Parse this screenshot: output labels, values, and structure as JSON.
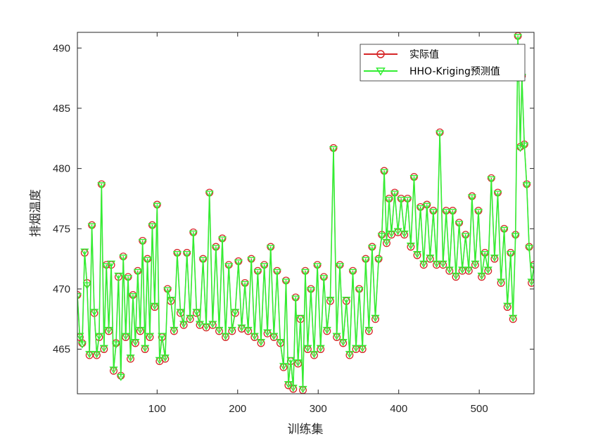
{
  "chart_data": {
    "type": "line",
    "title": "",
    "xlabel": "训练集",
    "ylabel": "排烟温度",
    "xlim": [
      1,
      568
    ],
    "ylim": [
      461.3,
      491.3
    ],
    "xticks": [
      100,
      200,
      300,
      400,
      500
    ],
    "yticks": [
      465,
      470,
      475,
      480,
      485,
      490
    ],
    "grid": false,
    "legend_position": "top-right",
    "series": [
      {
        "name": "实际值",
        "color": "#d62728",
        "marker": "circle",
        "anchors": [
          [
            1,
            469.5
          ],
          [
            4,
            466
          ],
          [
            7,
            465.5
          ],
          [
            10,
            473
          ],
          [
            13,
            470.5
          ],
          [
            16,
            464.5
          ],
          [
            19,
            475.3
          ],
          [
            22,
            468
          ],
          [
            25,
            464.5
          ],
          [
            28,
            466
          ],
          [
            31,
            478.7
          ],
          [
            34,
            465
          ],
          [
            37,
            472
          ],
          [
            40,
            466.5
          ],
          [
            43,
            472
          ],
          [
            46,
            463.2
          ],
          [
            49,
            465.5
          ],
          [
            52,
            471
          ],
          [
            55,
            462.8
          ],
          [
            58,
            472.7
          ],
          [
            61,
            466
          ],
          [
            64,
            471
          ],
          [
            67,
            464.2
          ],
          [
            70,
            469.5
          ],
          [
            73,
            465.5
          ],
          [
            76,
            471.5
          ],
          [
            79,
            466.5
          ],
          [
            82,
            474
          ],
          [
            85,
            465
          ],
          [
            88,
            472.5
          ],
          [
            91,
            466
          ],
          [
            94,
            475.3
          ],
          [
            97,
            468.5
          ],
          [
            100,
            477
          ],
          [
            103,
            464
          ],
          [
            106,
            466
          ],
          [
            110,
            464.2
          ],
          [
            113,
            470
          ],
          [
            117,
            469
          ],
          [
            121,
            466.5
          ],
          [
            125,
            473
          ],
          [
            129,
            468
          ],
          [
            133,
            467
          ],
          [
            137,
            473
          ],
          [
            141,
            467.5
          ],
          [
            145,
            474.7
          ],
          [
            149,
            468
          ],
          [
            153,
            467
          ],
          [
            157,
            472.5
          ],
          [
            161,
            466.8
          ],
          [
            165,
            478
          ],
          [
            169,
            467
          ],
          [
            173,
            473.5
          ],
          [
            177,
            466.5
          ],
          [
            181,
            474.2
          ],
          [
            185,
            466
          ],
          [
            189,
            472
          ],
          [
            193,
            466.5
          ],
          [
            197,
            468
          ],
          [
            201,
            472.3
          ],
          [
            205,
            466.7
          ],
          [
            209,
            470.5
          ],
          [
            213,
            466.5
          ],
          [
            217,
            472.5
          ],
          [
            221,
            466
          ],
          [
            225,
            471.5
          ],
          [
            229,
            465.5
          ],
          [
            233,
            472
          ],
          [
            237,
            466.3
          ],
          [
            241,
            473.5
          ],
          [
            245,
            466
          ],
          [
            249,
            471.5
          ],
          [
            253,
            465.5
          ],
          [
            257,
            463.5
          ],
          [
            260,
            470.7
          ],
          [
            263,
            462
          ],
          [
            266,
            464
          ],
          [
            269,
            461.7
          ],
          [
            272,
            469.3
          ],
          [
            275,
            463.8
          ],
          [
            278,
            467.5
          ],
          [
            281,
            461.6
          ],
          [
            284,
            471.5
          ],
          [
            287,
            465
          ],
          [
            291,
            470
          ],
          [
            295,
            464.5
          ],
          [
            299,
            472
          ],
          [
            303,
            465
          ],
          [
            307,
            471
          ],
          [
            311,
            466.5
          ],
          [
            315,
            469
          ],
          [
            319,
            481.7
          ],
          [
            323,
            466
          ],
          [
            327,
            472
          ],
          [
            331,
            465.5
          ],
          [
            335,
            469
          ],
          [
            339,
            464.5
          ],
          [
            343,
            471.5
          ],
          [
            347,
            465
          ],
          [
            351,
            470
          ],
          [
            355,
            465
          ],
          [
            359,
            472.5
          ],
          [
            363,
            466.5
          ],
          [
            367,
            473.5
          ],
          [
            371,
            467.5
          ],
          [
            375,
            472.5
          ],
          [
            379,
            474.5
          ],
          [
            382,
            479.8
          ],
          [
            385,
            473.8
          ],
          [
            388,
            477.5
          ],
          [
            391,
            474.5
          ],
          [
            395,
            478
          ],
          [
            399,
            474.7
          ],
          [
            403,
            477.5
          ],
          [
            407,
            474.5
          ],
          [
            411,
            477.5
          ],
          [
            415,
            473.5
          ],
          [
            419,
            479.3
          ],
          [
            423,
            472.8
          ],
          [
            427,
            476.8
          ],
          [
            431,
            472
          ],
          [
            435,
            477
          ],
          [
            439,
            472.5
          ],
          [
            443,
            476.5
          ],
          [
            447,
            472
          ],
          [
            451,
            483
          ],
          [
            455,
            472
          ],
          [
            459,
            476.5
          ],
          [
            463,
            471.5
          ],
          [
            467,
            476.5
          ],
          [
            471,
            471
          ],
          [
            475,
            475.5
          ],
          [
            479,
            471.5
          ],
          [
            483,
            474.5
          ],
          [
            487,
            471.5
          ],
          [
            491,
            477.7
          ],
          [
            495,
            472
          ],
          [
            499,
            476.5
          ],
          [
            503,
            471
          ],
          [
            507,
            473
          ],
          [
            511,
            471.5
          ],
          [
            515,
            479.2
          ],
          [
            519,
            472.5
          ],
          [
            523,
            478
          ],
          [
            527,
            470.5
          ],
          [
            531,
            475
          ],
          [
            535,
            468.5
          ],
          [
            539,
            473
          ],
          [
            542,
            467.5
          ],
          [
            545,
            474.5
          ],
          [
            548,
            491
          ],
          [
            551,
            481.8
          ],
          [
            553,
            487.7
          ],
          [
            556,
            482
          ],
          [
            559,
            478.7
          ],
          [
            562,
            473.5
          ],
          [
            565,
            470.5
          ],
          [
            568,
            472
          ]
        ]
      },
      {
        "name": "HHO-Kriging预测值",
        "color": "#33ee33",
        "marker": "triangle-down",
        "anchors": [
          [
            1,
            469.4
          ],
          [
            4,
            466.1
          ],
          [
            7,
            465.4
          ],
          [
            10,
            473.1
          ],
          [
            13,
            470.3
          ],
          [
            16,
            464.6
          ],
          [
            19,
            475.2
          ],
          [
            22,
            468.1
          ],
          [
            25,
            464.6
          ],
          [
            28,
            466.1
          ],
          [
            31,
            478.6
          ],
          [
            34,
            465.1
          ],
          [
            37,
            471.9
          ],
          [
            40,
            466.6
          ],
          [
            43,
            472.1
          ],
          [
            46,
            463.3
          ],
          [
            49,
            465.4
          ],
          [
            52,
            471.1
          ],
          [
            55,
            462.7
          ],
          [
            58,
            472.6
          ],
          [
            61,
            466.1
          ],
          [
            64,
            470.9
          ],
          [
            67,
            464.3
          ],
          [
            70,
            469.4
          ],
          [
            73,
            465.6
          ],
          [
            76,
            471.4
          ],
          [
            79,
            466.6
          ],
          [
            82,
            473.9
          ],
          [
            85,
            465.1
          ],
          [
            88,
            472.4
          ],
          [
            91,
            466.1
          ],
          [
            94,
            475.2
          ],
          [
            97,
            468.6
          ],
          [
            100,
            476.9
          ],
          [
            103,
            464.1
          ],
          [
            106,
            466.1
          ],
          [
            110,
            464.3
          ],
          [
            113,
            469.9
          ],
          [
            117,
            469.1
          ],
          [
            121,
            466.6
          ],
          [
            125,
            472.9
          ],
          [
            129,
            468.1
          ],
          [
            133,
            467.1
          ],
          [
            137,
            472.9
          ],
          [
            141,
            467.6
          ],
          [
            145,
            474.6
          ],
          [
            149,
            468.1
          ],
          [
            153,
            467.1
          ],
          [
            157,
            472.4
          ],
          [
            161,
            466.9
          ],
          [
            165,
            477.9
          ],
          [
            169,
            467.1
          ],
          [
            173,
            473.4
          ],
          [
            177,
            466.6
          ],
          [
            181,
            474.1
          ],
          [
            185,
            466.1
          ],
          [
            189,
            471.9
          ],
          [
            193,
            466.6
          ],
          [
            197,
            468.1
          ],
          [
            201,
            472.2
          ],
          [
            205,
            466.8
          ],
          [
            209,
            470.4
          ],
          [
            213,
            466.6
          ],
          [
            217,
            472.4
          ],
          [
            221,
            466.1
          ],
          [
            225,
            471.4
          ],
          [
            229,
            465.6
          ],
          [
            233,
            471.9
          ],
          [
            237,
            466.4
          ],
          [
            241,
            473.4
          ],
          [
            245,
            466.1
          ],
          [
            249,
            471.4
          ],
          [
            253,
            465.6
          ],
          [
            257,
            463.6
          ],
          [
            260,
            470.6
          ],
          [
            263,
            462.1
          ],
          [
            266,
            464.1
          ],
          [
            269,
            461.8
          ],
          [
            272,
            469.2
          ],
          [
            275,
            463.9
          ],
          [
            278,
            467.6
          ],
          [
            281,
            461.7
          ],
          [
            284,
            471.4
          ],
          [
            287,
            465.1
          ],
          [
            291,
            469.9
          ],
          [
            295,
            464.6
          ],
          [
            299,
            471.9
          ],
          [
            303,
            465.1
          ],
          [
            307,
            470.9
          ],
          [
            311,
            466.6
          ],
          [
            315,
            469.1
          ],
          [
            319,
            481.6
          ],
          [
            323,
            466.1
          ],
          [
            327,
            471.9
          ],
          [
            331,
            465.6
          ],
          [
            335,
            469.1
          ],
          [
            339,
            464.6
          ],
          [
            343,
            471.4
          ],
          [
            347,
            465.1
          ],
          [
            351,
            469.9
          ],
          [
            355,
            465.1
          ],
          [
            359,
            472.4
          ],
          [
            363,
            466.6
          ],
          [
            367,
            473.4
          ],
          [
            371,
            467.6
          ],
          [
            375,
            472.4
          ],
          [
            379,
            474.4
          ],
          [
            382,
            479.7
          ],
          [
            385,
            473.9
          ],
          [
            388,
            477.4
          ],
          [
            391,
            474.6
          ],
          [
            395,
            477.9
          ],
          [
            399,
            474.8
          ],
          [
            403,
            477.4
          ],
          [
            407,
            474.6
          ],
          [
            411,
            477.4
          ],
          [
            415,
            473.6
          ],
          [
            419,
            479.2
          ],
          [
            423,
            472.9
          ],
          [
            427,
            476.7
          ],
          [
            431,
            472.1
          ],
          [
            435,
            476.9
          ],
          [
            439,
            472.6
          ],
          [
            443,
            476.4
          ],
          [
            447,
            472.1
          ],
          [
            451,
            482.9
          ],
          [
            455,
            472.1
          ],
          [
            459,
            476.4
          ],
          [
            463,
            471.6
          ],
          [
            467,
            476.4
          ],
          [
            471,
            471.1
          ],
          [
            475,
            475.4
          ],
          [
            479,
            471.6
          ],
          [
            483,
            474.4
          ],
          [
            487,
            471.6
          ],
          [
            491,
            477.6
          ],
          [
            495,
            472.1
          ],
          [
            499,
            476.4
          ],
          [
            503,
            471.1
          ],
          [
            507,
            472.9
          ],
          [
            511,
            471.6
          ],
          [
            515,
            479.1
          ],
          [
            519,
            472.6
          ],
          [
            523,
            477.9
          ],
          [
            527,
            470.6
          ],
          [
            531,
            474.9
          ],
          [
            535,
            468.6
          ],
          [
            539,
            472.9
          ],
          [
            542,
            467.6
          ],
          [
            545,
            474.4
          ],
          [
            548,
            490.9
          ],
          [
            551,
            481.7
          ],
          [
            553,
            487.6
          ],
          [
            556,
            481.9
          ],
          [
            559,
            478.6
          ],
          [
            562,
            473.4
          ],
          [
            565,
            470.6
          ],
          [
            568,
            471.9
          ]
        ]
      }
    ]
  }
}
